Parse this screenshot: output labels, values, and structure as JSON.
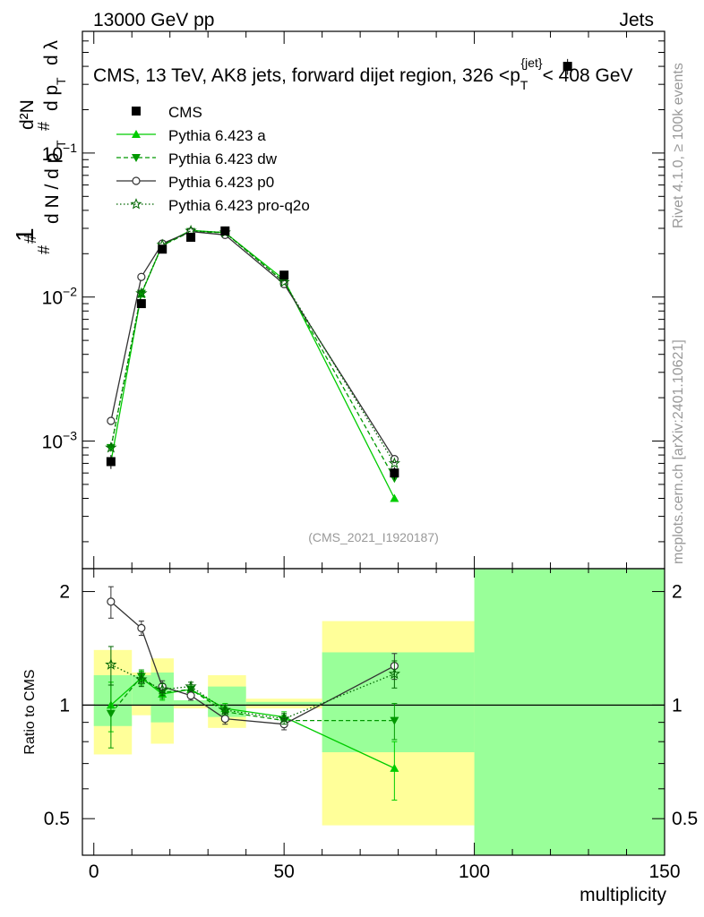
{
  "header": {
    "left": "13000 GeV pp",
    "right": "Jets",
    "title_pre": "CMS, 13 TeV, AK8 jets, forward dijet region, 326 <p",
    "title_sub": "T",
    "title_sup": "{jet}",
    "title_post": "< 408 GeV",
    "side_right_top": "Rivet 4.1.0, ≥ 100k events",
    "side_right_bottom": "mcplots.cern.ch [arXiv:2401.10621]",
    "analysis_id": "(CMS_2021_I1920187)"
  },
  "axes": {
    "xlabel": "multiplicity",
    "ratio_ylabel": "Ratio to CMS",
    "ylabel_parts": {
      "one": "1",
      "hash": "#",
      "dN": "d N / d p",
      "T": "T",
      "d2N": "d²N",
      "dpT": "d p",
      "dlambda": "d λ"
    }
  },
  "colors": {
    "data": "#000000",
    "pythia_a": "#00cc00",
    "pythia_dw": "#009900",
    "pythia_p0": "#333333",
    "pythia_proq2o": "#006600",
    "band_yellow": "#ffff99",
    "band_green": "#99ff99"
  },
  "chart_data": {
    "type": "scatter",
    "x_range": [
      -3,
      150
    ],
    "y_log": true,
    "y_range": [
      0.00013,
      0.7
    ],
    "ratio_range": [
      0.4,
      2.3
    ],
    "x_ticks": [
      0,
      50,
      100,
      150
    ],
    "y_ticks": [
      {
        "value": 0.001,
        "base": "10",
        "exp": "−3"
      },
      {
        "value": 0.01,
        "base": "10",
        "exp": "−2"
      },
      {
        "value": 0.1,
        "base": "10",
        "exp": "−1"
      }
    ],
    "ratio_ticks": [
      {
        "value": 0.5,
        "label": "0.5"
      },
      {
        "value": 1,
        "label": "1"
      },
      {
        "value": 2,
        "label": "2"
      }
    ],
    "bins": [
      {
        "lo": 0,
        "hi": 10
      },
      {
        "lo": 10,
        "hi": 15
      },
      {
        "lo": 15,
        "hi": 21
      },
      {
        "lo": 21,
        "hi": 30
      },
      {
        "lo": 30,
        "hi": 40
      },
      {
        "lo": 40,
        "hi": 60
      },
      {
        "lo": 60,
        "hi": 100
      },
      {
        "lo": 100,
        "hi": 150
      }
    ],
    "cms": {
      "name": "CMS",
      "x": [
        4.5,
        12.5,
        18,
        25.5,
        34.5,
        50,
        79,
        124.5
      ],
      "y": [
        0.00072,
        0.009,
        0.0215,
        0.026,
        0.0288,
        0.0142,
        0.0006,
        0.4
      ],
      "yerr": [
        8e-05,
        0.0004,
        0.0006,
        0.0008,
        0.0008,
        0.0005,
        6e-05,
        0.05
      ],
      "band_total": [
        [
          0.74,
          1.4
        ],
        [
          0.94,
          1.22
        ],
        [
          0.79,
          1.33
        ],
        [
          0.98,
          1.03
        ],
        [
          0.87,
          1.2
        ],
        [
          0.98,
          1.04
        ],
        [
          0.48,
          1.67
        ],
        [
          0.3,
          3.0
        ]
      ],
      "band_stat": [
        [
          0.88,
          1.2
        ],
        [
          1.0,
          1.2
        ],
        [
          0.9,
          1.22
        ],
        [
          1.0,
          1.03
        ],
        [
          0.93,
          1.12
        ],
        [
          1.0,
          1.02
        ],
        [
          0.75,
          1.38
        ],
        [
          0.3,
          3.0
        ]
      ]
    },
    "series": [
      {
        "name": "Pythia 6.423 a",
        "marker": "triangle-up",
        "line": "solid",
        "x": [
          4.5,
          12.5,
          18,
          25.5,
          34.5,
          50,
          79
        ],
        "y": [
          0.00072,
          0.0105,
          0.023,
          0.029,
          0.028,
          0.0132,
          0.0004
        ],
        "ratio": [
          1.0,
          1.18,
          1.07,
          1.1,
          0.98,
          0.93,
          0.68
        ],
        "ratio_err": [
          0.15,
          0.05,
          0.04,
          0.03,
          0.03,
          0.03,
          0.12
        ]
      },
      {
        "name": "Pythia 6.423 dw",
        "marker": "triangle-down",
        "line": "dashed",
        "x": [
          4.5,
          12.5,
          18,
          25.5,
          34.5,
          50,
          79
        ],
        "y": [
          0.0009,
          0.0106,
          0.0228,
          0.0285,
          0.028,
          0.0127,
          0.00055
        ],
        "ratio": [
          0.95,
          1.19,
          1.08,
          1.1,
          0.96,
          0.91,
          0.91
        ],
        "ratio_err": [
          0.18,
          0.05,
          0.04,
          0.03,
          0.03,
          0.03,
          0.1
        ]
      },
      {
        "name": "Pythia 6.423 p0",
        "marker": "circle-open",
        "line": "solid",
        "x": [
          4.5,
          12.5,
          18,
          25.5,
          34.5,
          50,
          79
        ],
        "y": [
          0.00138,
          0.0138,
          0.0235,
          0.0285,
          0.027,
          0.0123,
          0.00075
        ],
        "ratio": [
          1.88,
          1.6,
          1.12,
          1.06,
          0.92,
          0.89,
          1.27
        ],
        "ratio_err": [
          0.18,
          0.07,
          0.04,
          0.03,
          0.03,
          0.03,
          0.1
        ]
      },
      {
        "name": "Pythia 6.423 pro-q2o",
        "marker": "star-open",
        "line": "dotted",
        "x": [
          4.5,
          12.5,
          18,
          25.5,
          34.5,
          50,
          79
        ],
        "y": [
          0.0009,
          0.0106,
          0.023,
          0.0288,
          0.0281,
          0.0127,
          0.0007
        ],
        "ratio": [
          1.28,
          1.17,
          1.1,
          1.12,
          0.97,
          0.92,
          1.21
        ],
        "ratio_err": [
          0.15,
          0.05,
          0.04,
          0.03,
          0.03,
          0.03,
          0.1
        ]
      }
    ]
  }
}
